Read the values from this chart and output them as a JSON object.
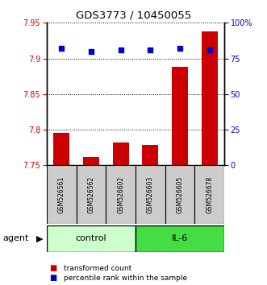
{
  "title": "GDS3773 / 10450055",
  "samples": [
    "GSM526561",
    "GSM526562",
    "GSM526602",
    "GSM526603",
    "GSM526605",
    "GSM526678"
  ],
  "bar_values": [
    7.795,
    7.762,
    7.782,
    7.779,
    7.888,
    7.938
  ],
  "percentile_values": [
    82,
    80,
    81,
    81,
    82,
    81
  ],
  "ylim_left": [
    7.75,
    7.95
  ],
  "ylim_right": [
    0,
    100
  ],
  "yticks_left": [
    7.75,
    7.8,
    7.85,
    7.9,
    7.95
  ],
  "yticks_right": [
    0,
    25,
    50,
    75,
    100
  ],
  "bar_color": "#cc0000",
  "dot_color": "#0000cc",
  "control_color": "#ccffcc",
  "il6_color": "#44dd44",
  "control_label": "control",
  "il6_label": "IL-6",
  "agent_label": "agent",
  "legend_bar_label": "transformed count",
  "legend_dot_label": "percentile rank within the sample",
  "tick_label_color_left": "#cc0000",
  "tick_label_color_right": "#0000cc",
  "bar_width": 0.55,
  "baseline": 7.75,
  "bg_color": "#cccccc",
  "n_control": 3,
  "n_il6": 3
}
